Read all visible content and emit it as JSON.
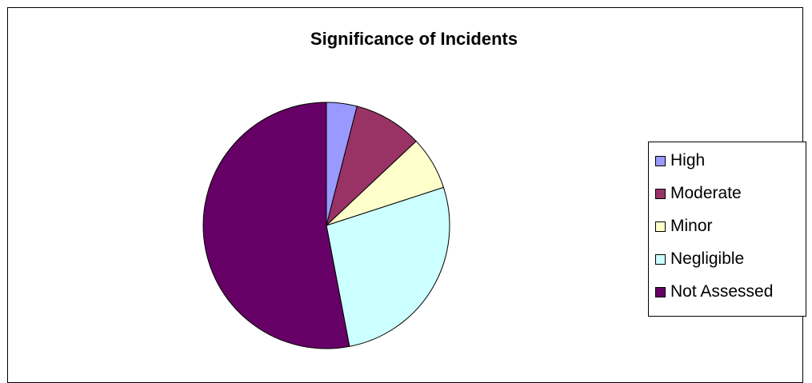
{
  "chart_data": {
    "type": "pie",
    "title": "Significance of Incidents",
    "categories": [
      "High",
      "Moderate",
      "Minor",
      "Negligible",
      "Not Assessed"
    ],
    "values": [
      4,
      9,
      7,
      27,
      53
    ],
    "colors": [
      "#9999ff",
      "#993366",
      "#ffffcc",
      "#ccffff",
      "#660066"
    ],
    "start_angle_deg": 0,
    "direction": "clockwise",
    "legend": {
      "position": "right",
      "items": [
        {
          "label": "High",
          "color": "#9999ff"
        },
        {
          "label": "Moderate",
          "color": "#993366"
        },
        {
          "label": "Minor",
          "color": "#ffffcc"
        },
        {
          "label": "Negligible",
          "color": "#ccffff"
        },
        {
          "label": "Not Assessed",
          "color": "#660066"
        }
      ]
    }
  }
}
